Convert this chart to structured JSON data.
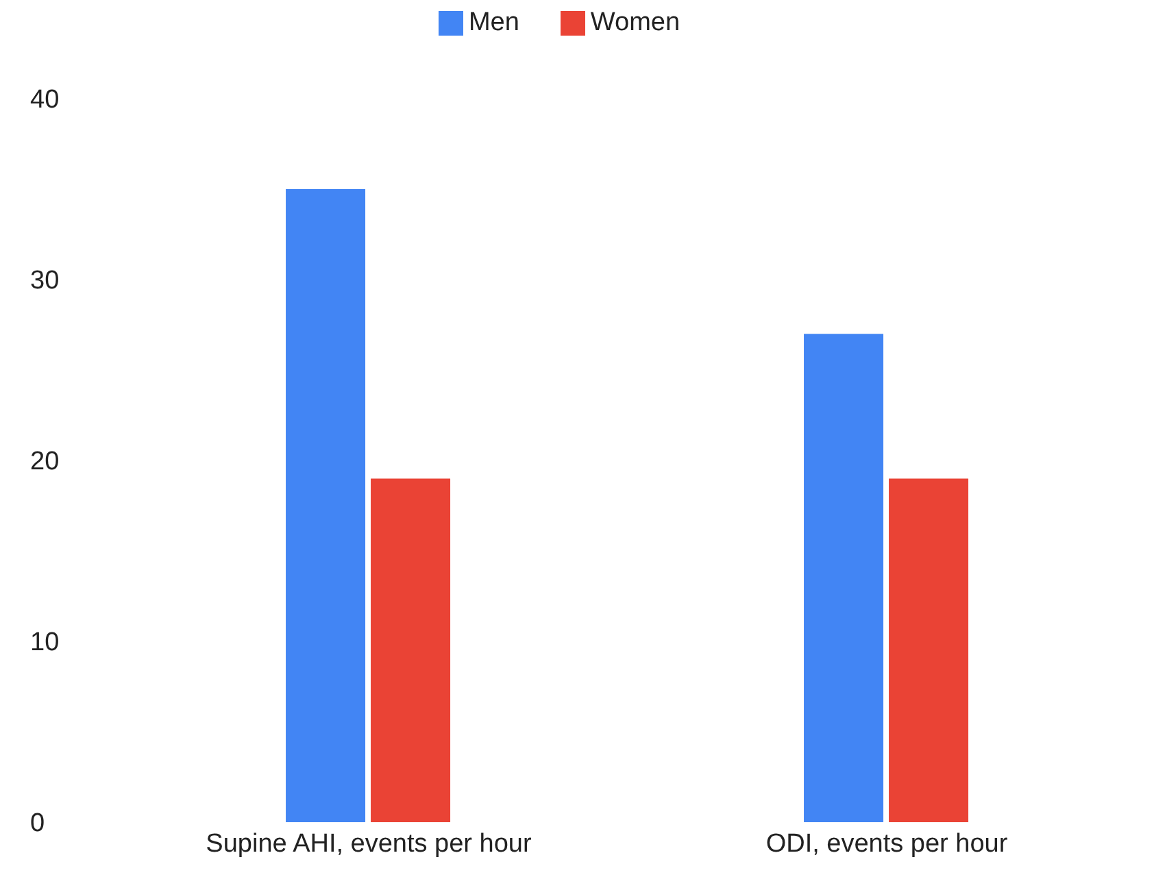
{
  "chart_data": {
    "type": "bar",
    "categories": [
      "Supine AHI, events per hour",
      "ODI, events per hour"
    ],
    "series": [
      {
        "name": "Men",
        "color": "#4285f4",
        "values": [
          35,
          27
        ]
      },
      {
        "name": "Women",
        "color": "#ea4335",
        "values": [
          19,
          19
        ]
      }
    ],
    "ylim": [
      0,
      40
    ],
    "yticks": [
      0,
      10,
      20,
      30,
      40
    ],
    "grid": false,
    "legend": "top"
  }
}
